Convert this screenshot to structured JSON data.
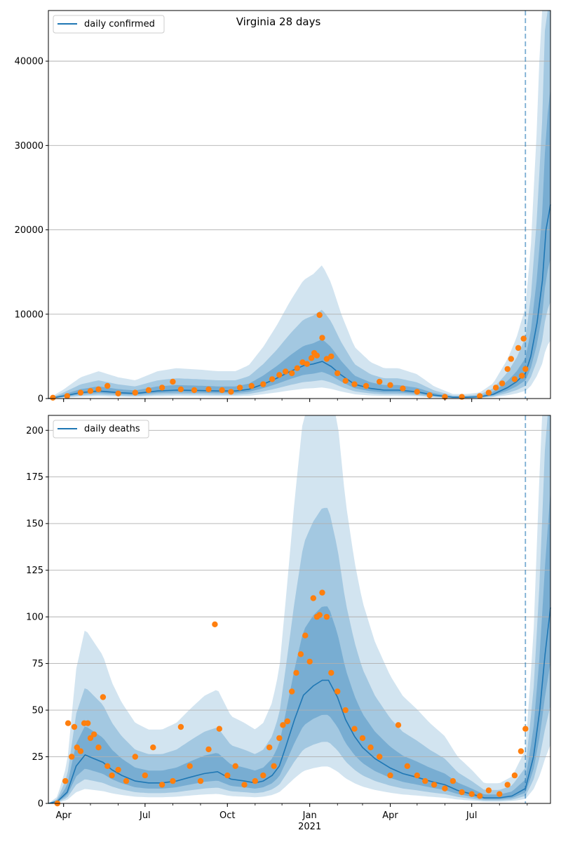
{
  "chart_data": [
    {
      "type": "line",
      "title": "Virginia 28 days",
      "xlabel": "",
      "ylabel": "",
      "xlim": [
        "2020-03-15",
        "2021-09-27"
      ],
      "ylim": [
        0,
        46000
      ],
      "yticks": [
        0,
        10000,
        20000,
        30000,
        40000
      ],
      "grid": "y",
      "legend": "top-left",
      "vline": "2021-08-30",
      "colors": {
        "line": "#1f77b4",
        "points": "#ff7f0e",
        "band": "#1f77b4"
      },
      "series": [
        {
          "name": "daily confirmed",
          "kind": "line",
          "x": [
            "2020-03-15",
            "2020-04-01",
            "2020-04-20",
            "2020-05-10",
            "2020-06-01",
            "2020-06-20",
            "2020-07-15",
            "2020-08-05",
            "2020-09-01",
            "2020-09-20",
            "2020-10-10",
            "2020-10-25",
            "2020-11-10",
            "2020-11-25",
            "2020-12-10",
            "2020-12-25",
            "2021-01-05",
            "2021-01-15",
            "2021-01-25",
            "2021-02-05",
            "2021-02-20",
            "2021-03-10",
            "2021-03-25",
            "2021-04-10",
            "2021-05-01",
            "2021-05-20",
            "2021-06-10",
            "2021-06-25",
            "2021-07-10",
            "2021-07-25",
            "2021-08-10",
            "2021-08-20",
            "2021-08-30",
            "2021-09-05",
            "2021-09-12",
            "2021-09-18",
            "2021-09-22",
            "2021-09-27"
          ],
          "y": [
            0,
            300,
            700,
            900,
            700,
            600,
            900,
            1000,
            950,
            900,
            900,
            1100,
            1700,
            2400,
            3200,
            3900,
            4100,
            4400,
            3800,
            2800,
            1700,
            1200,
            1000,
            1000,
            800,
            400,
            150,
            150,
            200,
            500,
            1300,
            2000,
            3000,
            5000,
            9000,
            14000,
            20000,
            23000
          ]
        },
        {
          "name": "",
          "kind": "scatter",
          "x": [
            "2020-03-20",
            "2020-04-05",
            "2020-04-20",
            "2020-05-01",
            "2020-05-10",
            "2020-05-20",
            "2020-06-01",
            "2020-06-20",
            "2020-07-05",
            "2020-07-20",
            "2020-08-01",
            "2020-08-10",
            "2020-08-25",
            "2020-09-10",
            "2020-09-25",
            "2020-10-05",
            "2020-10-15",
            "2020-10-28",
            "2020-11-10",
            "2020-11-20",
            "2020-11-28",
            "2020-12-05",
            "2020-12-12",
            "2020-12-18",
            "2020-12-24",
            "2020-12-29",
            "2021-01-03",
            "2021-01-06",
            "2021-01-09",
            "2021-01-12",
            "2021-01-15",
            "2021-01-20",
            "2021-01-25",
            "2021-02-01",
            "2021-02-10",
            "2021-02-20",
            "2021-03-05",
            "2021-03-20",
            "2021-04-01",
            "2021-04-15",
            "2021-05-01",
            "2021-05-15",
            "2021-06-01",
            "2021-06-20",
            "2021-07-10",
            "2021-07-20",
            "2021-07-28",
            "2021-08-04",
            "2021-08-10",
            "2021-08-14",
            "2021-08-18",
            "2021-08-22",
            "2021-08-26",
            "2021-08-28",
            "2021-08-30"
          ],
          "y": [
            100,
            300,
            700,
            900,
            1100,
            1500,
            600,
            700,
            1000,
            1300,
            2000,
            1100,
            1000,
            1100,
            1000,
            800,
            1300,
            1500,
            1700,
            2300,
            2800,
            3200,
            3000,
            3600,
            4300,
            4100,
            4800,
            5400,
            5100,
            9900,
            7200,
            4700,
            5000,
            3000,
            2100,
            1700,
            1500,
            2000,
            1600,
            1200,
            800,
            400,
            200,
            200,
            300,
            700,
            1300,
            1800,
            3500,
            4700,
            2300,
            6000,
            2700,
            7100,
            3500
          ]
        }
      ]
    },
    {
      "type": "line",
      "title": "",
      "xlabel": "",
      "ylabel": "",
      "xlim": [
        "2020-03-15",
        "2021-09-27"
      ],
      "ylim": [
        0,
        208
      ],
      "yticks": [
        0,
        25,
        50,
        75,
        100,
        125,
        150,
        175,
        200
      ],
      "xticks": [
        {
          "date": "2020-04-01",
          "label": "Apr"
        },
        {
          "date": "2020-07-01",
          "label": "Jul"
        },
        {
          "date": "2020-10-01",
          "label": "Oct"
        },
        {
          "date": "2021-01-01",
          "label": "Jan",
          "sublabel": "2021"
        },
        {
          "date": "2021-04-01",
          "label": "Apr"
        },
        {
          "date": "2021-07-01",
          "label": "Jul"
        }
      ],
      "grid": "y",
      "legend": "top-left",
      "vline": "2021-08-30",
      "series": [
        {
          "name": "daily deaths",
          "kind": "line",
          "x": [
            "2020-03-15",
            "2020-03-25",
            "2020-04-05",
            "2020-04-15",
            "2020-04-25",
            "2020-05-05",
            "2020-05-15",
            "2020-05-25",
            "2020-06-05",
            "2020-06-20",
            "2020-07-05",
            "2020-07-20",
            "2020-08-05",
            "2020-08-20",
            "2020-09-05",
            "2020-09-20",
            "2020-10-05",
            "2020-10-20",
            "2020-11-01",
            "2020-11-10",
            "2020-11-20",
            "2020-11-28",
            "2020-12-05",
            "2020-12-15",
            "2020-12-25",
            "2021-01-05",
            "2021-01-15",
            "2021-01-22",
            "2021-02-01",
            "2021-02-10",
            "2021-02-20",
            "2021-03-01",
            "2021-03-15",
            "2021-04-01",
            "2021-04-15",
            "2021-05-01",
            "2021-05-15",
            "2021-06-01",
            "2021-06-15",
            "2021-07-01",
            "2021-07-15",
            "2021-08-01",
            "2021-08-15",
            "2021-08-30",
            "2021-09-08",
            "2021-09-15",
            "2021-09-21",
            "2021-09-27"
          ],
          "y": [
            0,
            1,
            6,
            20,
            26,
            24,
            22,
            18,
            15,
            12,
            11,
            11,
            12,
            14,
            16,
            17,
            13,
            12,
            11,
            12,
            15,
            20,
            30,
            45,
            58,
            63,
            66,
            66,
            57,
            45,
            36,
            30,
            24,
            19,
            16,
            14,
            12,
            10,
            7,
            5,
            3,
            3,
            4,
            8,
            25,
            50,
            80,
            105
          ]
        },
        {
          "name": "",
          "kind": "scatter",
          "x": [
            "2020-03-25",
            "2020-04-03",
            "2020-04-06",
            "2020-04-10",
            "2020-04-13",
            "2020-04-16",
            "2020-04-20",
            "2020-04-24",
            "2020-04-28",
            "2020-05-01",
            "2020-05-05",
            "2020-05-10",
            "2020-05-15",
            "2020-05-20",
            "2020-05-25",
            "2020-06-01",
            "2020-06-10",
            "2020-06-20",
            "2020-07-01",
            "2020-07-10",
            "2020-07-20",
            "2020-08-01",
            "2020-08-10",
            "2020-08-20",
            "2020-09-01",
            "2020-09-10",
            "2020-09-17",
            "2020-09-22",
            "2020-10-01",
            "2020-10-10",
            "2020-10-20",
            "2020-11-01",
            "2020-11-10",
            "2020-11-17",
            "2020-11-22",
            "2020-11-28",
            "2020-12-02",
            "2020-12-07",
            "2020-12-12",
            "2020-12-17",
            "2020-12-22",
            "2020-12-27",
            "2021-01-01",
            "2021-01-05",
            "2021-01-09",
            "2021-01-12",
            "2021-01-15",
            "2021-01-20",
            "2021-01-25",
            "2021-02-01",
            "2021-02-10",
            "2021-02-20",
            "2021-03-01",
            "2021-03-10",
            "2021-03-20",
            "2021-04-01",
            "2021-04-10",
            "2021-04-20",
            "2021-05-01",
            "2021-05-10",
            "2021-05-20",
            "2021-06-01",
            "2021-06-10",
            "2021-06-20",
            "2021-07-01",
            "2021-07-10",
            "2021-07-20",
            "2021-08-01",
            "2021-08-10",
            "2021-08-18",
            "2021-08-25",
            "2021-08-30"
          ],
          "y": [
            0,
            12,
            43,
            25,
            41,
            30,
            28,
            43,
            43,
            35,
            37,
            30,
            57,
            20,
            15,
            18,
            12,
            25,
            15,
            30,
            10,
            12,
            41,
            20,
            12,
            29,
            96,
            40,
            15,
            20,
            10,
            12,
            15,
            30,
            20,
            35,
            42,
            44,
            60,
            70,
            80,
            90,
            76,
            110,
            100,
            101,
            113,
            100,
            70,
            60,
            50,
            40,
            35,
            30,
            25,
            15,
            42,
            20,
            15,
            12,
            10,
            8,
            12,
            6,
            5,
            4,
            7,
            5,
            10,
            15,
            28,
            40
          ]
        }
      ]
    }
  ]
}
